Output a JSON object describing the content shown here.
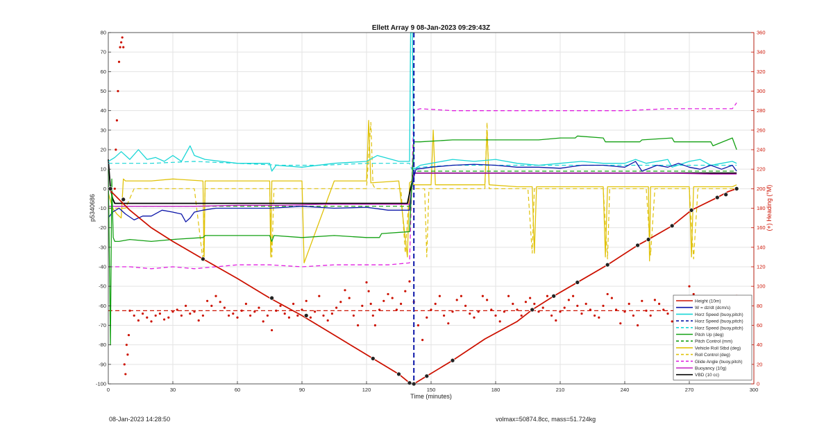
{
  "chart_data": {
    "type": "line",
    "title": "Ellett Array 9 08-Jan-2023 09:29:43Z",
    "xlabel": "Time (minutes)",
    "ylabel": "p5340686",
    "ylabel_right": "(+) Heading (°M)",
    "xlim": [
      0,
      300
    ],
    "ylim": [
      -100,
      80
    ],
    "ylim_right": [
      0,
      360
    ],
    "xticks": [
      0,
      30,
      60,
      90,
      120,
      150,
      180,
      210,
      240,
      270,
      300
    ],
    "yticks": [
      -100,
      -90,
      -80,
      -70,
      -60,
      -50,
      -40,
      -30,
      -20,
      -10,
      0,
      10,
      20,
      30,
      40,
      50,
      60,
      70,
      80
    ],
    "yticks_right": [
      0,
      20,
      40,
      60,
      80,
      100,
      120,
      140,
      160,
      180,
      200,
      220,
      240,
      260,
      280,
      300,
      320,
      340,
      360
    ],
    "grid": true,
    "legend_position": "bottom-right",
    "series": [
      {
        "name": "Height (10m)",
        "color": "#cc1100",
        "dash": "solid",
        "width": 1.6,
        "x": [
          0,
          5,
          10,
          20,
          30,
          44,
          60,
          75,
          90,
          105,
          123,
          135,
          140,
          142,
          148,
          160,
          175,
          190,
          197,
          207,
          218,
          232,
          246,
          251,
          262,
          271,
          283,
          288,
          292
        ],
        "y": [
          0,
          -5.5,
          -11,
          -20,
          -27,
          -36,
          -46,
          -56,
          -65,
          -75,
          -87,
          -95,
          -99.5,
          -100,
          -96,
          -88,
          -77,
          -68,
          -62,
          -55,
          -48,
          -39,
          -29,
          -26,
          -19,
          -11,
          -4.5,
          -1.5,
          0
        ]
      },
      {
        "name": "W = dz/dt (dcm/s)",
        "color": "#0a14a8",
        "dash": "solid",
        "width": 1.3,
        "x": [
          0,
          2,
          5,
          8,
          12,
          16,
          20,
          25,
          30,
          34,
          36,
          38,
          40,
          44,
          50,
          60,
          75,
          90,
          105,
          120,
          130,
          140,
          141,
          142,
          143,
          150,
          160,
          170,
          180,
          190,
          200,
          210,
          220,
          230,
          240,
          245,
          248,
          255,
          260,
          265,
          270,
          275,
          280,
          285,
          290,
          292
        ],
        "y": [
          -15,
          -12,
          -10,
          -13,
          -16,
          -14,
          -14,
          -11,
          -12,
          -13,
          -17,
          -15,
          -12,
          -11,
          -10,
          -10,
          -10,
          -9,
          -10,
          -9.5,
          -11,
          -11,
          0,
          6,
          10,
          11,
          12,
          12.5,
          12,
          11,
          11,
          10.5,
          12,
          12,
          11,
          14,
          9,
          12,
          11,
          13,
          11,
          10,
          12,
          10,
          12,
          9
        ]
      },
      {
        "name": "Horz Speed (buoy,pitch)",
        "color": "#18d6d6",
        "dash": "solid",
        "width": 1.3,
        "x": [
          0,
          3,
          6,
          10,
          14,
          18,
          22,
          26,
          30,
          34,
          38,
          40,
          45,
          60,
          75,
          76,
          78,
          90,
          105,
          120,
          125,
          135,
          140,
          140.5,
          141.3,
          142,
          145,
          150,
          160,
          170,
          180,
          190,
          200,
          210,
          220,
          230,
          240,
          245,
          250,
          260,
          262,
          270,
          275,
          280,
          285,
          290,
          292
        ],
        "y": [
          14,
          16,
          19,
          15,
          20,
          15,
          16,
          14,
          17,
          14,
          22,
          17,
          15,
          13,
          13,
          9,
          12,
          11,
          13,
          14,
          17,
          14,
          14,
          80,
          80,
          10,
          12,
          13,
          15,
          14,
          15,
          13,
          12,
          13,
          14,
          13,
          13,
          15,
          13,
          15,
          11,
          14,
          15,
          12,
          13,
          14,
          13
        ]
      },
      {
        "name": "Horz Speed (buoy,pitch)",
        "color": "#18d6d6",
        "dash": "dashed",
        "width": 1.2,
        "x": [
          0,
          20,
          40,
          60,
          80,
          100,
          120,
          140,
          141,
          145,
          160,
          180,
          200,
          220,
          240,
          260,
          280,
          292
        ],
        "y": [
          13,
          13,
          14,
          13,
          12,
          12,
          13,
          13,
          10,
          11,
          12,
          12,
          12,
          12,
          12,
          12,
          12,
          12
        ]
      },
      {
        "name": "Pitch Up (deg)",
        "color": "#12a012",
        "dash": "solid",
        "width": 1.3,
        "x": [
          0,
          1,
          1.6,
          2.3,
          3,
          5,
          10,
          20,
          30,
          44,
          45,
          60,
          75,
          76,
          77,
          90,
          105,
          120,
          126,
          127,
          140,
          142,
          145,
          160,
          175,
          190,
          200,
          210,
          217,
          218,
          230,
          231,
          247,
          248,
          262,
          263,
          280,
          281,
          290,
          292
        ],
        "y": [
          10,
          -80,
          5,
          -25,
          -27,
          -27,
          -26,
          -27,
          -26,
          -25,
          -24,
          -24,
          -24,
          -27,
          -24,
          -25,
          -24,
          -25,
          -25,
          -23,
          -22,
          24,
          24,
          25,
          25,
          25,
          25,
          26,
          26,
          27,
          26,
          24,
          24,
          25,
          26,
          24,
          24,
          22,
          26,
          20
        ]
      },
      {
        "name": "Pitch Control (mm)",
        "color": "#12a012",
        "dash": "dashed",
        "width": 1.2,
        "x": [
          0,
          20,
          40,
          60,
          80,
          100,
          120,
          140,
          142,
          160,
          180,
          200,
          220,
          240,
          260,
          280,
          292
        ],
        "y": [
          -9,
          -9,
          -9,
          -9,
          -9,
          -9,
          -9,
          -9,
          9,
          9,
          9,
          9,
          9,
          9,
          9,
          9,
          9
        ]
      },
      {
        "name": "Vehicle Roll Stbd (deg)",
        "color": "#e0c20a",
        "dash": "solid",
        "width": 1.3,
        "x": [
          0,
          2,
          4,
          6,
          7,
          8,
          10,
          20,
          30,
          44,
          44.5,
          45,
          60,
          75,
          75.5,
          76,
          90,
          91,
          105,
          120,
          121,
          122,
          135,
          139,
          140,
          141,
          142,
          145,
          150,
          151,
          152,
          160,
          175,
          176,
          177,
          190,
          197,
          198,
          199,
          200,
          220,
          230,
          231,
          232,
          240,
          251,
          251.5,
          252,
          260,
          270,
          271,
          272,
          280,
          290,
          292
        ],
        "y": [
          -2,
          -10,
          -13,
          -15,
          5,
          4,
          4,
          4,
          5,
          4,
          -37,
          4,
          4,
          4,
          -35,
          4,
          4,
          -38,
          4,
          4,
          35,
          3,
          4,
          -35,
          3,
          4,
          2,
          2,
          2,
          30,
          2,
          2,
          2,
          30,
          2,
          1,
          1,
          -33,
          1,
          1,
          1,
          1,
          -35,
          1,
          1,
          1,
          -37,
          1,
          1,
          1,
          -35,
          1,
          1,
          1,
          2
        ]
      },
      {
        "name": "Roll Control (deg)",
        "color": "#e0c20a",
        "dash": "dashed",
        "width": 1.2,
        "x": [
          0,
          8,
          12,
          40,
          44,
          45,
          75,
          76,
          77,
          120,
          122,
          123,
          124,
          136,
          138,
          140,
          141,
          147,
          148,
          149,
          175,
          176,
          177,
          195,
          197,
          198,
          230,
          232,
          233,
          250,
          252,
          254,
          270,
          272,
          274,
          290,
          292
        ],
        "y": [
          -10,
          -10,
          0,
          0,
          -37,
          0,
          0,
          -35,
          0,
          0,
          34,
          2,
          0,
          0,
          -33,
          0,
          0,
          0,
          -35,
          0,
          0,
          34,
          0,
          0,
          -33,
          0,
          0,
          -36,
          0,
          0,
          -34,
          0,
          0,
          -36,
          0,
          0,
          0
        ]
      },
      {
        "name": "Glide Angle (buoy,pitch)",
        "color": "#e020e0",
        "dash": "dashed",
        "width": 1.3,
        "x": [
          0,
          10,
          20,
          30,
          40,
          60,
          75,
          90,
          105,
          120,
          130,
          140,
          142,
          145,
          160,
          175,
          190,
          205,
          220,
          240,
          260,
          270,
          280,
          290,
          292
        ],
        "y": [
          -40,
          -40,
          -41,
          -40,
          -41,
          -39,
          -39,
          -40,
          -39,
          -39,
          -39,
          -38,
          40,
          41,
          40,
          40,
          40,
          40,
          40,
          40,
          41,
          41,
          41,
          41,
          44
        ]
      },
      {
        "name": "Buoyancy (10g)",
        "color": "#c41ec4",
        "dash": "solid",
        "width": 1.3,
        "x": [
          0,
          20,
          40,
          60,
          80,
          100,
          120,
          140,
          142,
          160,
          180,
          200,
          220,
          240,
          260,
          280,
          292
        ],
        "y": [
          -9,
          -9,
          -9,
          -8.5,
          -8.5,
          -8,
          -8,
          -8,
          8,
          8,
          8,
          8,
          8,
          8,
          8,
          7.5,
          7.5
        ]
      },
      {
        "name": "VBD (10 cc)",
        "color": "#000000",
        "dash": "solid",
        "width": 1.8,
        "x": [
          0,
          1,
          2,
          3,
          5,
          30,
          60,
          100,
          139,
          142,
          145,
          180,
          220,
          260,
          292
        ],
        "y": [
          15,
          0,
          -5,
          -7.5,
          -7.5,
          -7.5,
          -7.5,
          -7.5,
          -7.5,
          8,
          8,
          8,
          8,
          8,
          8
        ]
      }
    ],
    "markers": {
      "name": "Height waypoints",
      "x": [
        1,
        7,
        44,
        76,
        92,
        123,
        135,
        140,
        142,
        148,
        160,
        197,
        207,
        218,
        232,
        246,
        251,
        262,
        271,
        283,
        287,
        292
      ],
      "y": [
        0,
        -5.5,
        -36,
        -56,
        -65,
        -87,
        -95,
        -99.5,
        -100,
        -96,
        -88,
        -62,
        -55,
        -48,
        -39,
        -29,
        -26,
        -19,
        -11,
        -4.5,
        -3,
        0
      ]
    },
    "heading_right_axis": {
      "name": "Heading",
      "x": [
        3,
        3.5,
        4,
        4.5,
        5,
        5.5,
        6,
        6.5,
        7,
        7.5,
        8,
        8.5,
        9,
        9.5,
        10,
        12,
        14,
        16,
        18,
        20,
        22,
        24,
        26,
        28,
        30,
        32,
        34,
        36,
        38,
        40,
        42,
        44,
        46,
        48,
        50,
        52,
        54,
        56,
        58,
        60,
        62,
        64,
        66,
        68,
        70,
        72,
        74,
        76,
        78,
        80,
        82,
        84,
        86,
        88,
        90,
        92,
        94,
        96,
        98,
        100,
        102,
        104,
        106,
        108,
        110,
        112,
        114,
        116,
        118,
        120,
        121,
        122,
        123,
        124,
        126,
        128,
        130,
        132,
        134,
        136,
        138,
        140,
        142,
        144,
        146,
        148,
        150,
        152,
        154,
        156,
        158,
        160,
        162,
        164,
        166,
        168,
        170,
        172,
        174,
        176,
        178,
        180,
        182,
        184,
        186,
        188,
        190,
        192,
        194,
        196,
        198,
        200,
        202,
        204,
        206,
        208,
        210,
        212,
        214,
        216,
        218,
        220,
        222,
        224,
        226,
        228,
        230,
        232,
        234,
        236,
        238,
        240,
        242,
        244,
        246,
        248,
        250,
        252,
        254,
        256,
        258,
        260,
        262,
        264,
        266,
        268,
        270,
        272,
        274,
        276,
        278,
        280,
        282,
        284,
        286,
        288,
        290,
        292
      ],
      "y": [
        200,
        240,
        270,
        300,
        330,
        345,
        350,
        355,
        345,
        20,
        10,
        40,
        30,
        50,
        75,
        70,
        65,
        72,
        68,
        64,
        70,
        72,
        66,
        68,
        74,
        76,
        70,
        80,
        72,
        74,
        65,
        70,
        85,
        80,
        90,
        84,
        78,
        70,
        72,
        68,
        75,
        82,
        70,
        74,
        78,
        64,
        70,
        55,
        75,
        80,
        72,
        68,
        82,
        70,
        76,
        85,
        68,
        74,
        90,
        70,
        65,
        72,
        78,
        84,
        96,
        88,
        70,
        60,
        80,
        104,
        95,
        82,
        70,
        60,
        76,
        85,
        92,
        88,
        76,
        82,
        95,
        105,
        84,
        60,
        45,
        68,
        76,
        82,
        90,
        70,
        62,
        74,
        86,
        90,
        80,
        72,
        68,
        74,
        90,
        86,
        76,
        70,
        64,
        74,
        90,
        82,
        76,
        70,
        84,
        88,
        82,
        74,
        78,
        90,
        70,
        65,
        74,
        78,
        86,
        90,
        80,
        72,
        82,
        76,
        70,
        68,
        80,
        92,
        88,
        76,
        62,
        74,
        82,
        70,
        60,
        85,
        75,
        70,
        86,
        82,
        76,
        72,
        64,
        76,
        80,
        86,
        100,
        92,
        80,
        70,
        74,
        64,
        72,
        58,
        70,
        64,
        55,
        90
      ]
    },
    "heading_reference_line": {
      "value": 75,
      "color": "#cc1100",
      "dash": "dashed"
    }
  },
  "legend": [
    {
      "label": "Height (10m)",
      "color": "#cc1100",
      "dash": "solid"
    },
    {
      "label": "W = dz/dt (dcm/s)",
      "color": "#0a14a8",
      "dash": "solid"
    },
    {
      "label": "Horz Speed (buoy,pitch)",
      "color": "#18d6d6",
      "dash": "solid"
    },
    {
      "label": "Horz Speed (buoy,pitch)",
      "color": "#0a14a8",
      "dash": "dashed"
    },
    {
      "label": "Horz Speed (buoy,pitch)",
      "color": "#18d6d6",
      "dash": "dashed"
    },
    {
      "label": "Pitch Up (deg)",
      "color": "#12a012",
      "dash": "solid"
    },
    {
      "label": "Pitch Control (mm)",
      "color": "#12a012",
      "dash": "dashed"
    },
    {
      "label": "Vehicle Roll Stbd (deg)",
      "color": "#e0c20a",
      "dash": "solid"
    },
    {
      "label": "Roll Control (deg)",
      "color": "#e0c20a",
      "dash": "dashed"
    },
    {
      "label": "Glide Angle (buoy,pitch)",
      "color": "#e020e0",
      "dash": "dashed"
    },
    {
      "label": "Buoyancy (10g)",
      "color": "#c41ec4",
      "dash": "solid"
    },
    {
      "label": "VBD (10 cc)",
      "color": "#000000",
      "dash": "solid"
    }
  ],
  "footer": {
    "date": "08-Jan-2023 14:28:50",
    "stats": "volmax=50874.8cc, mass=51.724kg"
  }
}
